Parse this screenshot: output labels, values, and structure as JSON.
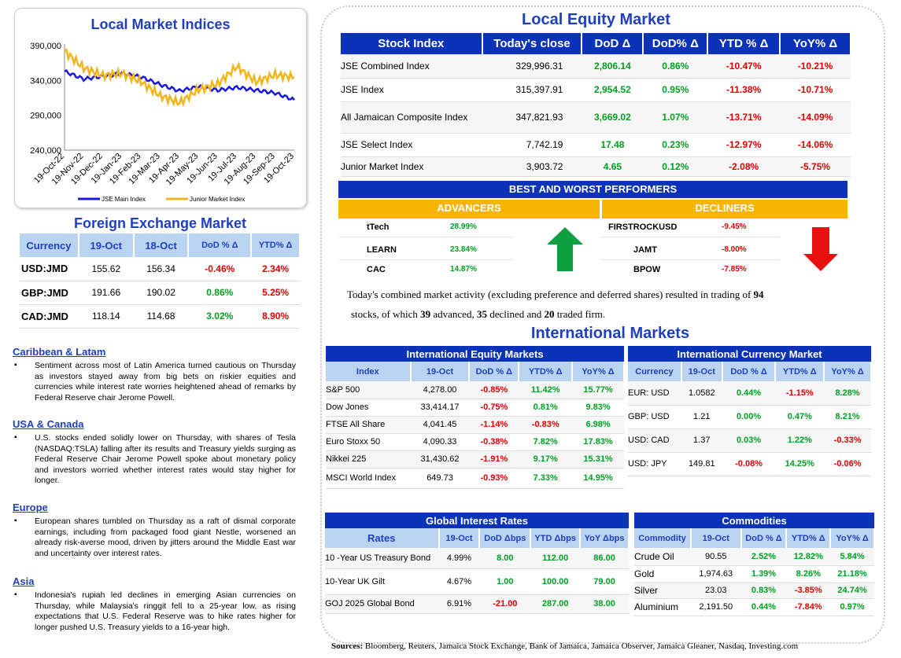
{
  "chart": {
    "title": "Local Market Indices",
    "legend": [
      "JSE Main Index",
      "Junior Market Index"
    ],
    "colors": {
      "jse": "#1a1adb",
      "junior": "#f2b51c"
    }
  },
  "chart_data": {
    "type": "line",
    "title": "Local Market Indices",
    "x": [
      "19-Oct-22",
      "19-Nov-22",
      "19-Dec-22",
      "19-Jan-23",
      "19-Feb-23",
      "19-Mar-23",
      "19-Apr-23",
      "19-May-23",
      "19-Jun-23",
      "19-Jul-23",
      "19-Aug-23",
      "19-Sep-23",
      "19-Oct-23"
    ],
    "ylim": [
      240000,
      390000
    ],
    "yticks": [
      "240,000",
      "290,000",
      "340,000",
      "390,000"
    ],
    "series": [
      {
        "name": "JSE Main Index",
        "values": [
          353000,
          342000,
          346000,
          350000,
          345000,
          334000,
          325000,
          331000,
          326000,
          330000,
          326000,
          322000,
          312000
        ]
      },
      {
        "name": "Junior Market Index",
        "values": [
          382000,
          358000,
          347000,
          350000,
          338000,
          318000,
          308000,
          327000,
          335000,
          360000,
          338000,
          348000,
          345000
        ]
      }
    ]
  },
  "fx": {
    "title": "Foreign Exchange Market",
    "headers": [
      "Currency",
      "19-Oct",
      "18-Oct",
      "DoD % Δ",
      "YTD% Δ"
    ],
    "rows": [
      {
        "cur": "USD:JMD",
        "a": "155.62",
        "b": "156.34",
        "dod": "-0.46%",
        "ytd": "2.34%"
      },
      {
        "cur": "GBP:JMD",
        "a": "191.66",
        "b": "190.02",
        "dod": "0.86%",
        "ytd": "5.25%"
      },
      {
        "cur": "CAD:JMD",
        "a": "118.14",
        "b": "114.68",
        "dod": "3.02%",
        "ytd": "8.90%"
      }
    ]
  },
  "news": [
    {
      "h": "Caribbean & Latam",
      "p": "Sentiment across most of Latin America turned cautious on Thursday as investors stayed away from big bets on riskier equities and currencies while interest rate worries heightened ahead of remarks by Federal Reserve chair Jerome Powell."
    },
    {
      "h": "USA & Canada",
      "p": "U.S. stocks ended solidly lower on Thursday, with shares of Tesla (NASDAQ:TSLA) falling after its results and Treasury yields surging as Federal Reserve Chair Jerome Powell spoke about monetary policy and investors worried whether interest rates would stay higher for longer."
    },
    {
      "h": "Europe",
      "p": "European shares tumbled on Thursday as a raft of dismal corporate earnings, including from packaged food giant Nestle, worsened an already risk-averse mood, driven by jitters around the Middle East war and uncertainty over interest rates."
    },
    {
      "h": "Asia",
      "p": "Indonesia's rupiah led declines in emerging Asian currencies on Thursday, while Malaysia's ringgit fell to a 25-year low, as rising expectations that U.S. Federal Reserve was to hike rates higher for longer pushed U.S. Treasury yields to a 16-year high."
    }
  ],
  "equity": {
    "title": "Local Equity Market",
    "headers": [
      "Stock Index",
      "Today's close",
      "DoD  Δ",
      "DoD% Δ",
      "YTD % Δ",
      "YoY% Δ"
    ],
    "rows": [
      {
        "name": "JSE Combined Index",
        "close": "329,996.31",
        "dod": "2,806.14",
        "dodp": "0.86%",
        "ytd": "-10.47%",
        "yoy": "-10.21%"
      },
      {
        "name": "JSE Index",
        "close": "315,397.91",
        "dod": "2,954.52",
        "dodp": "0.95%",
        "ytd": "-11.38%",
        "yoy": "-10.71%"
      },
      {
        "name": "All Jamaican Composite Index",
        "close": "347,821.93",
        "dod": "3,669.02",
        "dodp": "1.07%",
        "ytd": "-13.71%",
        "yoy": "-14.09%"
      },
      {
        "name": "JSE Select Index",
        "close": "7,742.19",
        "dod": "17.48",
        "dodp": "0.23%",
        "ytd": "-12.97%",
        "yoy": "-14.06%"
      },
      {
        "name": "Junior Market Index",
        "close": "3,903.72",
        "dod": "4.65",
        "dodp": "0.12%",
        "ytd": "-2.08%",
        "yoy": "-5.75%"
      }
    ]
  },
  "performers": {
    "title": "BEST AND WORST PERFORMERS",
    "adv_label": "ADVANCERS",
    "dec_label": "DECLINERS",
    "advancers": [
      {
        "name": "tTech",
        "val": "28.99%"
      },
      {
        "name": "LEARN",
        "val": "23.84%"
      },
      {
        "name": "CAC",
        "val": "14.87%"
      }
    ],
    "decliners": [
      {
        "name": "FIRSTROCKUSD",
        "val": "-9.45%"
      },
      {
        "name": "JAMT",
        "val": "-8.00%"
      },
      {
        "name": "BPOW",
        "val": "-7.85%"
      }
    ]
  },
  "activity": {
    "t1": "Today's combined market activity (excluding preference and deferred shares) resulted in trading of ",
    "n_total": "94",
    "t2": "stocks, of which ",
    "n_adv": "39",
    "t3": " advanced, ",
    "n_dec": "35",
    "t4": " declined and ",
    "n_firm": "20",
    "t5": " traded firm."
  },
  "intl": {
    "title": "International Markets",
    "equity": {
      "title": "International Equity Markets",
      "headers": [
        "Index",
        "19-Oct",
        "DoD % Δ",
        "YTD% Δ",
        "YoY% Δ"
      ],
      "rows": [
        {
          "name": "S&P 500",
          "v": "4,278.00",
          "dod": "-0.85%",
          "ytd": "11.42%",
          "yoy": "15.77%"
        },
        {
          "name": "Dow Jones",
          "v": "33,414.17",
          "dod": "-0.75%",
          "ytd": "0.81%",
          "yoy": "9.83%"
        },
        {
          "name": "FTSE All Share",
          "v": "4,041.45",
          "dod": "-1.14%",
          "ytd": "-0.83%",
          "yoy": "6.98%"
        },
        {
          "name": "Euro Stoxx 50",
          "v": "4,090.33",
          "dod": "-0.38%",
          "ytd": "7.82%",
          "yoy": "17.83%"
        },
        {
          "name": "Nikkei 225",
          "v": "31,430.62",
          "dod": "-1.91%",
          "ytd": "9.17%",
          "yoy": "15.31%"
        },
        {
          "name": "MSCI World Index",
          "v": "649.73",
          "dod": "-0.93%",
          "ytd": "7.33%",
          "yoy": "14.95%"
        }
      ]
    },
    "currency": {
      "title": "International Currency Market",
      "headers": [
        "Currency",
        "19-Oct",
        "DoD % Δ",
        "YTD% Δ",
        "YoY% Δ"
      ],
      "rows": [
        {
          "name": "EUR: USD",
          "v": "1.0582",
          "dod": "0.44%",
          "ytd": "-1.15%",
          "yoy": "8.28%"
        },
        {
          "name": "GBP: USD",
          "v": "1.21",
          "dod": "0.00%",
          "ytd": "0.47%",
          "yoy": "8.21%"
        },
        {
          "name": "USD: CAD",
          "v": "1.37",
          "dod": "0.03%",
          "ytd": "1.22%",
          "yoy": "-0.33%"
        },
        {
          "name": "USD: JPY",
          "v": "149.81",
          "dod": "-0.08%",
          "ytd": "14.25%",
          "yoy": "-0.06%"
        }
      ]
    },
    "rates": {
      "title": "Global Interest Rates",
      "headers": [
        "Rates",
        "19-Oct",
        "DoD Δbps",
        "YTD Δbps",
        "YoY Δbps"
      ],
      "rows": [
        {
          "name": "10 -Year US Treasury Bond",
          "v": "4.99%",
          "dod": "8.00",
          "ytd": "112.00",
          "yoy": "86.00"
        },
        {
          "name": "10-Year UK Gilt",
          "v": "4.67%",
          "dod": "1.00",
          "ytd": "100.00",
          "yoy": "79.00"
        },
        {
          "name": "GOJ 2025 Global Bond",
          "v": "6.91%",
          "dod": "-21.00",
          "ytd": "287.00",
          "yoy": "38.00"
        }
      ]
    },
    "commodities": {
      "title": "Commodities",
      "headers": [
        "Commodity",
        "19-Oct",
        "DoD % Δ",
        "YTD% Δ",
        "YoY% Δ"
      ],
      "rows": [
        {
          "name": "Crude Oil",
          "v": "90.55",
          "dod": "2.52%",
          "ytd": "12.82%",
          "yoy": "5.84%"
        },
        {
          "name": "Gold",
          "v": "1,974.63",
          "dod": "1.39%",
          "ytd": "8.26%",
          "yoy": "21.18%"
        },
        {
          "name": "Silver",
          "v": "23.03",
          "dod": "0.83%",
          "ytd": "-3.85%",
          "yoy": "24.74%"
        },
        {
          "name": "Aluminium",
          "v": "2,191.50",
          "dod": "0.44%",
          "ytd": "-7.84%",
          "yoy": "0.97%"
        }
      ]
    }
  },
  "sources": {
    "label": "Sources:",
    "text": " Bloomberg, Reuters, Jamaica Stock Exchange, Bank of Jamaica, Jamaica Observer, Jamaica Gleaner, Nasdaq, Investing.com"
  }
}
